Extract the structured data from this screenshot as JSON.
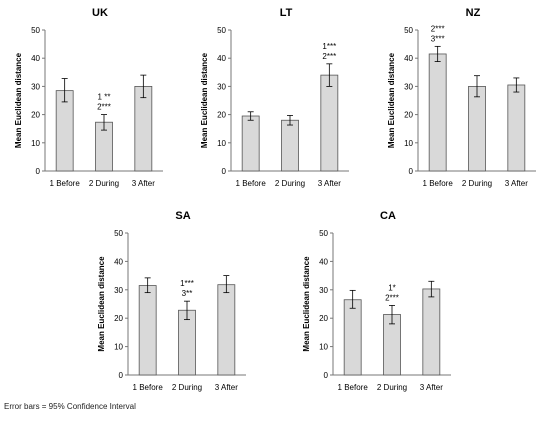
{
  "footnote": "Error bars = 95% Confidence Interval",
  "chart_data": [
    {
      "type": "bar",
      "title": "UK",
      "ylabel": "Mean Euclidean distance",
      "categories": [
        "1 Before",
        "2 During",
        "3 After"
      ],
      "values": [
        28.5,
        17.3,
        30.0
      ],
      "error": [
        [
          24.5,
          32.8
        ],
        [
          14.5,
          20.0
        ],
        [
          26.0,
          34.0
        ]
      ],
      "annotations": [
        {
          "category": "2 During",
          "lines": [
            "1 **",
            "2***"
          ]
        }
      ],
      "ylim": [
        0,
        50
      ],
      "yticks": [
        0,
        10,
        20,
        30,
        40,
        50
      ]
    },
    {
      "type": "bar",
      "title": "LT",
      "ylabel": "Mean Euclidean distance",
      "categories": [
        "1 Before",
        "2 During",
        "3 After"
      ],
      "values": [
        19.5,
        18.0,
        34.0
      ],
      "error": [
        [
          18.0,
          21.0
        ],
        [
          16.3,
          19.7
        ],
        [
          30.0,
          38.0
        ]
      ],
      "annotations": [
        {
          "category": "3 After",
          "lines": [
            "1***",
            "2***"
          ]
        }
      ],
      "ylim": [
        0,
        50
      ],
      "yticks": [
        0,
        10,
        20,
        30,
        40,
        50
      ]
    },
    {
      "type": "bar",
      "title": "NZ",
      "ylabel": "Mean Euclidean distance",
      "categories": [
        "1 Before",
        "2 During",
        "3 After"
      ],
      "values": [
        41.5,
        30.0,
        30.5
      ],
      "error": [
        [
          38.8,
          44.2
        ],
        [
          26.3,
          33.8
        ],
        [
          28.0,
          33.0
        ]
      ],
      "annotations": [
        {
          "category": "1 Before",
          "lines": [
            "2***",
            "3***"
          ]
        }
      ],
      "ylim": [
        0,
        50
      ],
      "yticks": [
        0,
        10,
        20,
        30,
        40,
        50
      ]
    },
    {
      "type": "bar",
      "title": "SA",
      "ylabel": "Mean Euclidean distance",
      "categories": [
        "1 Before",
        "2 During",
        "3 After"
      ],
      "values": [
        31.5,
        22.8,
        31.8
      ],
      "error": [
        [
          29.0,
          34.2
        ],
        [
          19.5,
          26.0
        ],
        [
          29.0,
          35.0
        ]
      ],
      "annotations": [
        {
          "category": "2 During",
          "lines": [
            "1***",
            "3**"
          ]
        }
      ],
      "ylim": [
        0,
        50
      ],
      "yticks": [
        0,
        10,
        20,
        30,
        40,
        50
      ]
    },
    {
      "type": "bar",
      "title": "CA",
      "ylabel": "Mean Euclidean distance",
      "categories": [
        "1 Before",
        "2 During",
        "3 After"
      ],
      "values": [
        26.5,
        21.3,
        30.3
      ],
      "error": [
        [
          23.5,
          29.8
        ],
        [
          18.0,
          24.5
        ],
        [
          27.5,
          33.0
        ]
      ],
      "annotations": [
        {
          "category": "2 During",
          "lines": [
            "1*",
            "2***"
          ]
        }
      ],
      "ylim": [
        0,
        50
      ],
      "yticks": [
        0,
        10,
        20,
        30,
        40,
        50
      ]
    }
  ]
}
